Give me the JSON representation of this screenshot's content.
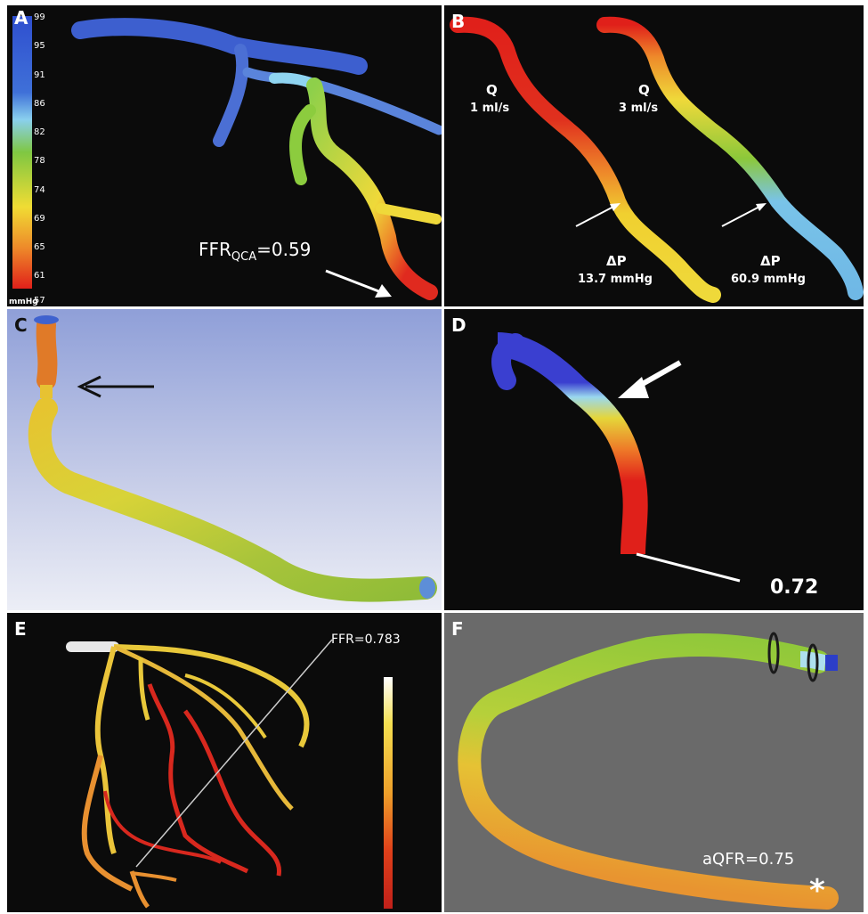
{
  "panels": {
    "a": {
      "label": "A",
      "legend": {
        "ticks": [
          "99",
          "95",
          "91",
          "86",
          "82",
          "78",
          "74",
          "69",
          "65",
          "61",
          "57"
        ],
        "unit": "mmHg"
      },
      "ffr_prefix": "FFR",
      "ffr_sub": "QCA",
      "ffr_value": "=0.59"
    },
    "b": {
      "label": "B",
      "left": {
        "q_label": "Q",
        "q_value": "1 ml/s",
        "dp_label": "ΔP",
        "dp_value": "13.7 mmHg"
      },
      "right": {
        "q_label": "Q",
        "q_value": "3 ml/s",
        "dp_label": "ΔP",
        "dp_value": "60.9 mmHg"
      }
    },
    "c": {
      "label": "C"
    },
    "d": {
      "label": "D",
      "value": "0.72"
    },
    "e": {
      "label": "E",
      "ffr": "FFR=0.783"
    },
    "f": {
      "label": "F",
      "aqfr": "aQFR=0.75",
      "marker": "*"
    }
  },
  "colors": {
    "bg_dark": "#0b0b0b",
    "bg_grey": "#6a6a6a",
    "bg_c_top": "#8f9fd8",
    "bg_c_bottom": "#eceef6",
    "blue": "#3f62cf",
    "light_blue": "#79b6e8",
    "green": "#8fc83a",
    "yellow": "#efd93a",
    "orange": "#eb8a2a",
    "red": "#e02a1f"
  }
}
